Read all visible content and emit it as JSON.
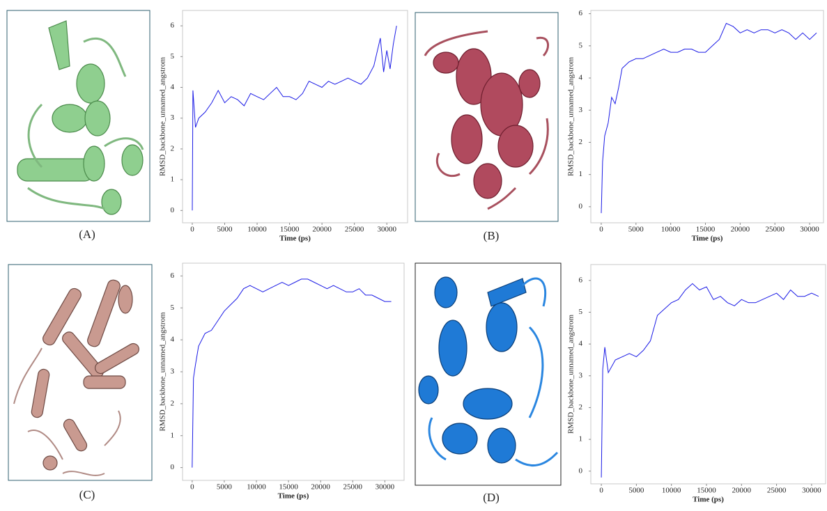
{
  "panels": [
    {
      "label": "(A)"
    },
    {
      "label": "(B)"
    },
    {
      "label": "(C)"
    },
    {
      "label": "(D)"
    }
  ],
  "chart_data": [
    {
      "type": "line",
      "x_label": "Time (ps)",
      "y_label": "RMSD_backbone_unnamed_angstrom",
      "x": [
        0,
        100,
        500,
        1000,
        2000,
        3000,
        4000,
        5000,
        6000,
        7000,
        8000,
        9000,
        10000,
        11000,
        12000,
        13000,
        14000,
        15000,
        16000,
        17000,
        18000,
        19000,
        20000,
        21000,
        22000,
        23000,
        24000,
        25000,
        26000,
        27000,
        28000,
        29000,
        29500,
        30000,
        30500,
        31000,
        31500
      ],
      "series": [
        {
          "color": "#1a1ae6",
          "values": [
            0,
            3.9,
            2.7,
            3.0,
            3.2,
            3.5,
            3.9,
            3.5,
            3.7,
            3.6,
            3.4,
            3.8,
            3.7,
            3.6,
            3.8,
            4.0,
            3.7,
            3.7,
            3.6,
            3.8,
            4.2,
            4.1,
            4.0,
            4.2,
            4.1,
            4.2,
            4.3,
            4.2,
            4.1,
            4.3,
            4.7,
            5.6,
            4.5,
            5.2,
            4.6,
            5.4,
            6.0
          ]
        }
      ],
      "xlim": [
        -1500,
        33200
      ],
      "ylim": [
        -0.4,
        6.5
      ],
      "xticks": [
        0,
        5000,
        10000,
        15000,
        20000,
        25000,
        30000
      ],
      "yticks": [
        0,
        1,
        2,
        3,
        4,
        5,
        6
      ]
    },
    {
      "type": "line",
      "x_label": "Time (ps)",
      "y_label": "RMSD_backbone_unnamed_angstrom",
      "x": [
        0,
        200,
        500,
        1000,
        1500,
        2000,
        2500,
        3000,
        4000,
        5000,
        6000,
        7000,
        8000,
        9000,
        10000,
        11000,
        12000,
        13000,
        14000,
        15000,
        16000,
        17000,
        18000,
        19000,
        20000,
        21000,
        22000,
        23000,
        24000,
        25000,
        26000,
        27000,
        28000,
        29000,
        30000,
        31000
      ],
      "series": [
        {
          "color": "#1a1ae6",
          "values": [
            -0.2,
            1.4,
            2.2,
            2.6,
            3.4,
            3.2,
            3.7,
            4.3,
            4.5,
            4.6,
            4.6,
            4.7,
            4.8,
            4.9,
            4.8,
            4.8,
            4.9,
            4.9,
            4.8,
            4.8,
            5.0,
            5.2,
            5.7,
            5.6,
            5.4,
            5.5,
            5.4,
            5.5,
            5.5,
            5.4,
            5.5,
            5.4,
            5.2,
            5.4,
            5.2,
            5.4
          ]
        }
      ],
      "xlim": [
        -1500,
        32000
      ],
      "ylim": [
        -0.5,
        6.1
      ],
      "xticks": [
        0,
        5000,
        10000,
        15000,
        20000,
        25000,
        30000
      ],
      "yticks": [
        0,
        1,
        2,
        3,
        4,
        5,
        6
      ]
    },
    {
      "type": "line",
      "x_label": "Time (ps)",
      "y_label": "RMSD_backbone_unnamed_angstrom",
      "x": [
        0,
        200,
        500,
        1000,
        2000,
        3000,
        4000,
        5000,
        6000,
        7000,
        8000,
        9000,
        10000,
        11000,
        12000,
        13000,
        14000,
        15000,
        16000,
        17000,
        18000,
        19000,
        20000,
        21000,
        22000,
        23000,
        24000,
        25000,
        26000,
        27000,
        28000,
        29000,
        30000,
        31000
      ],
      "series": [
        {
          "color": "#1a1ae6",
          "values": [
            0,
            2.8,
            3.2,
            3.8,
            4.2,
            4.3,
            4.6,
            4.9,
            5.1,
            5.3,
            5.6,
            5.7,
            5.6,
            5.5,
            5.6,
            5.7,
            5.8,
            5.7,
            5.8,
            5.9,
            5.9,
            5.8,
            5.7,
            5.6,
            5.7,
            5.6,
            5.5,
            5.5,
            5.6,
            5.4,
            5.4,
            5.3,
            5.2,
            5.2
          ]
        }
      ],
      "xlim": [
        -1500,
        33000
      ],
      "ylim": [
        -0.4,
        6.4
      ],
      "xticks": [
        0,
        5000,
        10000,
        15000,
        20000,
        25000,
        30000
      ],
      "yticks": [
        0,
        1,
        2,
        3,
        4,
        5,
        6
      ]
    },
    {
      "type": "line",
      "x_label": "Time (ps)",
      "y_label": "RMSD_backbone_unnamed_angstrom",
      "x": [
        0,
        200,
        500,
        1000,
        2000,
        3000,
        4000,
        5000,
        6000,
        7000,
        8000,
        9000,
        10000,
        11000,
        12000,
        13000,
        14000,
        15000,
        16000,
        17000,
        18000,
        19000,
        20000,
        21000,
        22000,
        23000,
        24000,
        25000,
        26000,
        27000,
        28000,
        29000,
        30000,
        31000
      ],
      "series": [
        {
          "color": "#1a1ae6",
          "values": [
            -0.2,
            3.2,
            3.9,
            3.1,
            3.5,
            3.6,
            3.7,
            3.6,
            3.8,
            4.1,
            4.9,
            5.1,
            5.3,
            5.4,
            5.7,
            5.9,
            5.7,
            5.8,
            5.4,
            5.5,
            5.3,
            5.2,
            5.4,
            5.3,
            5.3,
            5.4,
            5.5,
            5.6,
            5.4,
            5.7,
            5.5,
            5.5,
            5.6,
            5.5
          ]
        }
      ],
      "xlim": [
        -1500,
        32000
      ],
      "ylim": [
        -0.4,
        6.5
      ],
      "xticks": [
        0,
        5000,
        10000,
        15000,
        20000,
        25000,
        30000
      ],
      "yticks": [
        0,
        1,
        2,
        3,
        4,
        5,
        6
      ]
    }
  ]
}
